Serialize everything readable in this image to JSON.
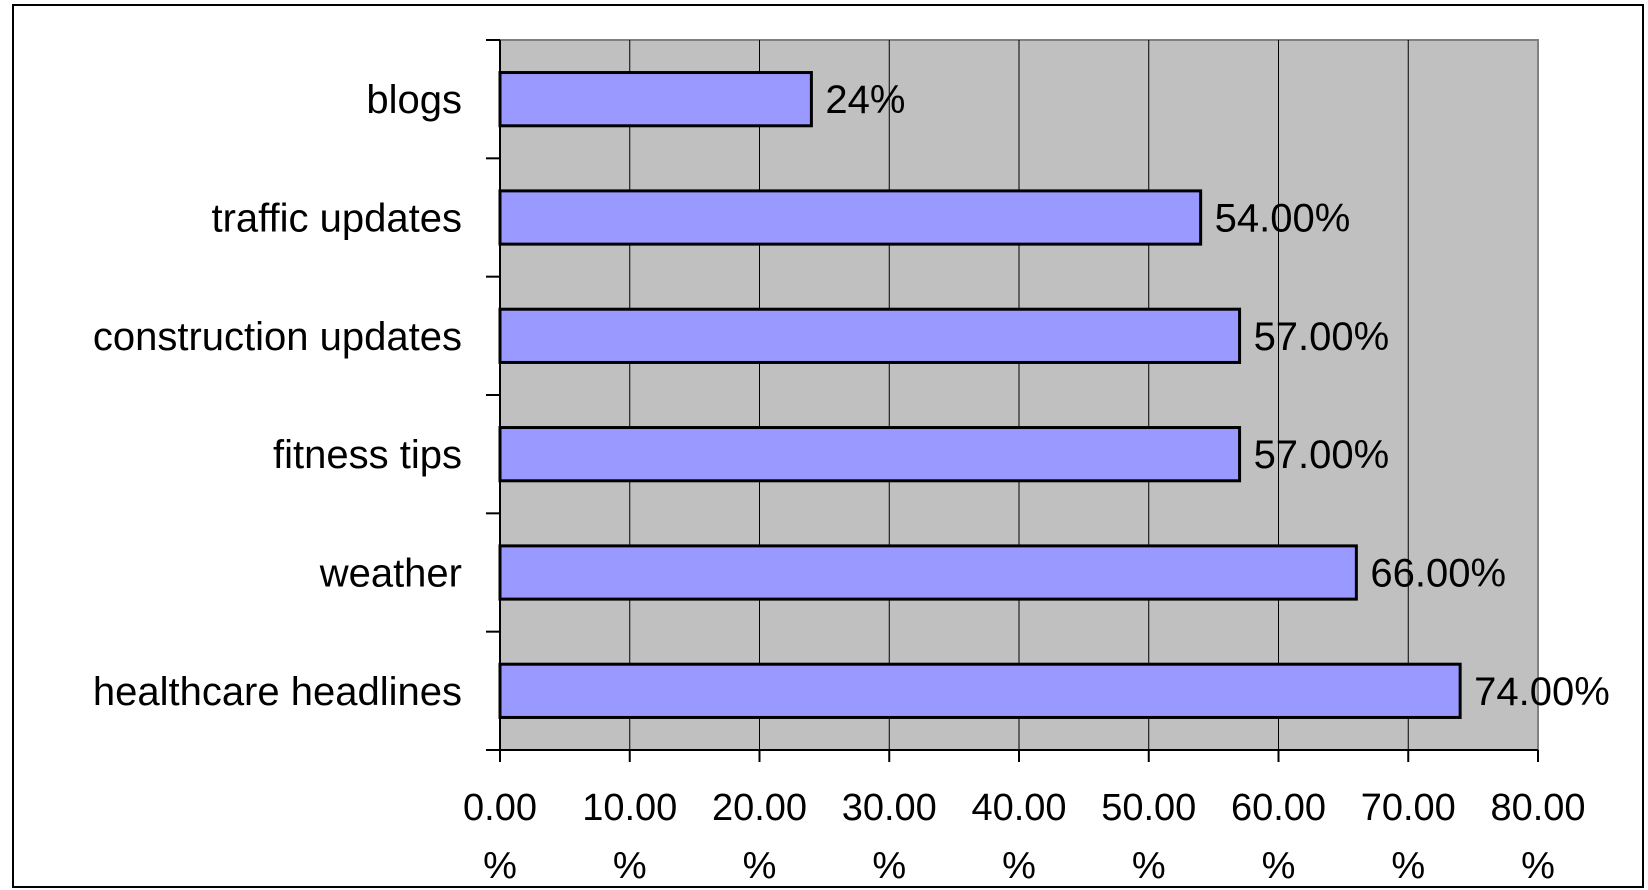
{
  "chart_data": {
    "type": "bar",
    "orientation": "horizontal",
    "title": "",
    "xlabel": "",
    "ylabel": "",
    "categories": [
      "blogs",
      "traffic updates",
      "construction updates",
      "fitness tips",
      "weather",
      "healthcare headlines"
    ],
    "values": [
      24,
      54,
      57,
      57,
      66,
      74
    ],
    "data_labels": [
      "24%",
      "54.00%",
      "57.00%",
      "57.00%",
      "66.00%",
      "74.00%"
    ],
    "xlim": [
      0,
      80
    ],
    "x_ticks": [
      0,
      10,
      20,
      30,
      40,
      50,
      60,
      70,
      80
    ],
    "x_tick_labels": [
      "0.00\n%",
      "10.00\n%",
      "20.00\n%",
      "30.00\n%",
      "40.00\n%",
      "50.00\n%",
      "60.00\n%",
      "70.00\n%",
      "80.00\n%"
    ],
    "grid": true,
    "legend": "none",
    "colors": {
      "bar_fill": "#9999ff",
      "bar_stroke": "#000000",
      "plot_background": "#c0c0c0",
      "grid_line": "#000000"
    }
  }
}
